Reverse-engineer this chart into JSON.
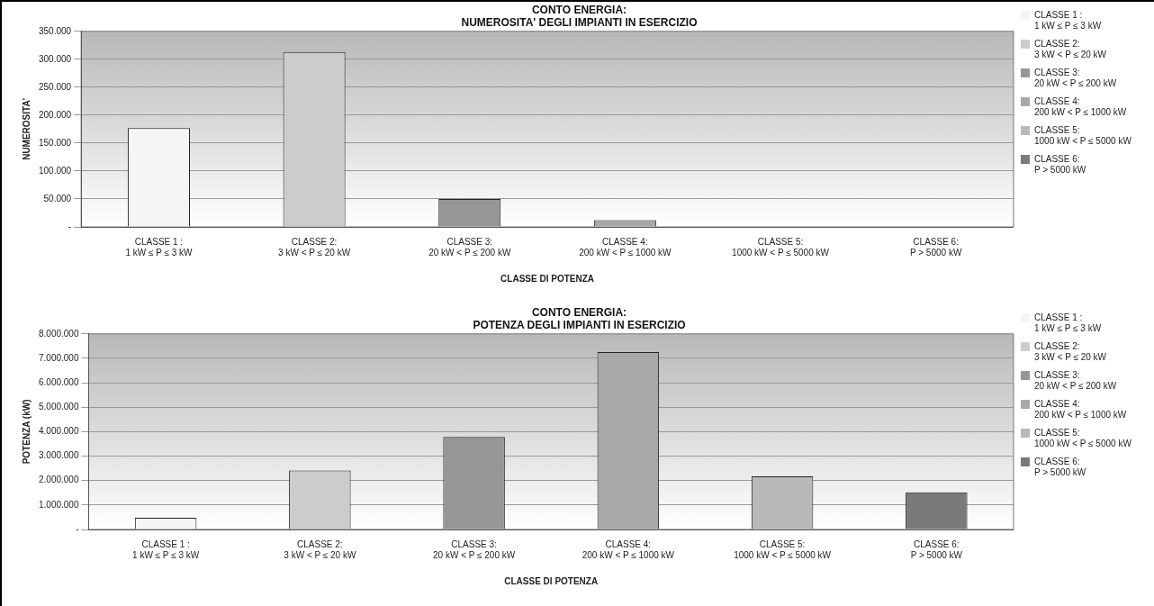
{
  "chart_data": [
    {
      "type": "bar",
      "title": [
        "CONTO ENERGIA:",
        "NUMEROSITA' DEGLI IMPIANTI IN ESERCIZIO"
      ],
      "xlabel": "CLASSE DI POTENZA",
      "ylabel": "NUMEROSITA'",
      "categories": [
        "CLASSE 1 :\n1 kW ≤ P ≤ 3 kW",
        "CLASSE 2:\n3 kW < P ≤ 20 kW",
        "CLASSE 3:\n20 kW < P ≤ 200 kW",
        "CLASSE 4:\n200 kW < P ≤ 1000 kW",
        "CLASSE 5:\n1000 kW < P ≤ 5000 kW",
        "CLASSE 6:\nP > 5000 kW"
      ],
      "series": [
        {
          "name": "CLASSE 1 :\n1 kW ≤ P ≤ 3 kW",
          "color": "#f5f5f5",
          "values": [
            177000,
            null,
            null,
            null,
            null,
            null
          ]
        },
        {
          "name": "CLASSE 2:\n3 kW < P ≤ 20 kW",
          "color": "#cccccc",
          "values": [
            null,
            313000,
            null,
            null,
            null,
            null
          ]
        },
        {
          "name": "CLASSE 3:\n20 kW < P ≤ 200 kW",
          "color": "#969696",
          "values": [
            null,
            null,
            50000,
            null,
            null,
            null
          ]
        },
        {
          "name": "CLASSE 4:\n200 kW < P ≤ 1000 kW",
          "color": "#a8a8a8",
          "values": [
            null,
            null,
            null,
            12000,
            null,
            null
          ]
        },
        {
          "name": "CLASSE 5:\n1000 kW < P ≤ 5000 kW",
          "color": "#b9b9b9",
          "values": [
            null,
            null,
            null,
            null,
            1000,
            null
          ]
        },
        {
          "name": "CLASSE 6:\nP > 5000 kW",
          "color": "#7a7a7a",
          "values": [
            null,
            null,
            null,
            null,
            null,
            0
          ]
        }
      ],
      "ylim": [
        0,
        350000
      ],
      "yticks": [
        {
          "value": 0,
          "label": "-"
        },
        {
          "value": 50000,
          "label": "50.000"
        },
        {
          "value": 100000,
          "label": "100.000"
        },
        {
          "value": 150000,
          "label": "150.000"
        },
        {
          "value": 200000,
          "label": "200.000"
        },
        {
          "value": 250000,
          "label": "250.000"
        },
        {
          "value": 300000,
          "label": "300.000"
        },
        {
          "value": 350000,
          "label": "350.000"
        }
      ],
      "grid": "y",
      "legend": "right"
    },
    {
      "type": "bar",
      "title": [
        "CONTO ENERGIA:",
        "POTENZA DEGLI IMPIANTI IN ESERCIZIO"
      ],
      "xlabel": "CLASSE DI POTENZA",
      "ylabel": "POTENZA (kW)",
      "categories": [
        "CLASSE 1 :\n1 kW ≤ P ≤ 3 kW",
        "CLASSE 2:\n3 kW < P ≤ 20 kW",
        "CLASSE 3:\n20 kW < P ≤ 200 kW",
        "CLASSE 4:\n200 kW < P ≤ 1000 kW",
        "CLASSE 5:\n1000 kW < P ≤ 5000 kW",
        "CLASSE 6:\nP > 5000 kW"
      ],
      "series": [
        {
          "name": "CLASSE 1 :\n1 kW ≤ P ≤ 3 kW",
          "color": "#f5f5f5",
          "values": [
            480000,
            null,
            null,
            null,
            null,
            null
          ]
        },
        {
          "name": "CLASSE 2:\n3 kW < P ≤ 20 kW",
          "color": "#cccccc",
          "values": [
            null,
            2410000,
            null,
            null,
            null,
            null
          ]
        },
        {
          "name": "CLASSE 3:\n20 kW < P ≤ 200 kW",
          "color": "#969696",
          "values": [
            null,
            null,
            3780000,
            null,
            null,
            null
          ]
        },
        {
          "name": "CLASSE 4:\n200 kW < P ≤ 1000 kW",
          "color": "#a8a8a8",
          "values": [
            null,
            null,
            null,
            7260000,
            null,
            null
          ]
        },
        {
          "name": "CLASSE 5:\n1000 kW < P ≤ 5000 kW",
          "color": "#b9b9b9",
          "values": [
            null,
            null,
            null,
            null,
            2170000,
            null
          ]
        },
        {
          "name": "CLASSE 6:\nP > 5000 kW",
          "color": "#7a7a7a",
          "values": [
            null,
            null,
            null,
            null,
            null,
            1520000
          ]
        }
      ],
      "ylim": [
        0,
        8000000
      ],
      "yticks": [
        {
          "value": 0,
          "label": "-"
        },
        {
          "value": 1000000,
          "label": "1.000.000"
        },
        {
          "value": 2000000,
          "label": "2.000.000"
        },
        {
          "value": 3000000,
          "label": "3.000.000"
        },
        {
          "value": 4000000,
          "label": "4.000.000"
        },
        {
          "value": 5000000,
          "label": "5.000.000"
        },
        {
          "value": 6000000,
          "label": "6.000.000"
        },
        {
          "value": 7000000,
          "label": "7.000.000"
        },
        {
          "value": 8000000,
          "label": "8.000.000"
        }
      ],
      "grid": "y",
      "legend": "right"
    }
  ]
}
